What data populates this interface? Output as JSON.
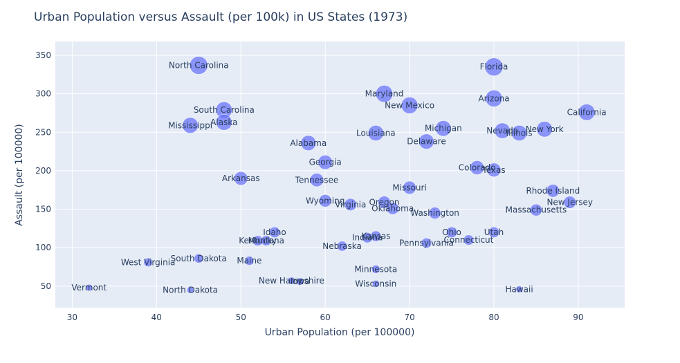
{
  "chart_data": {
    "type": "scatter",
    "title": "Urban Population versus Assault (per 100k) in US States (1973)",
    "xlabel": "Urban Population (per 100000)",
    "ylabel": "Assault (per 100000)",
    "xlim": [
      28,
      95.5
    ],
    "ylim": [
      22,
      368
    ],
    "xticks": [
      30,
      40,
      50,
      60,
      70,
      80,
      90
    ],
    "yticks": [
      50,
      100,
      150,
      200,
      250,
      300,
      350
    ],
    "grid": true,
    "marker_color": "#636efa",
    "plot_bg": "#e5ecf6",
    "size_encodes": "Assault",
    "points": [
      {
        "label": "Alabama",
        "x": 58,
        "y": 236
      },
      {
        "label": "Alaska",
        "x": 48,
        "y": 263
      },
      {
        "label": "Arizona",
        "x": 80,
        "y": 294
      },
      {
        "label": "Arkansas",
        "x": 50,
        "y": 190
      },
      {
        "label": "California",
        "x": 91,
        "y": 276
      },
      {
        "label": "Colorado",
        "x": 78,
        "y": 204
      },
      {
        "label": "Connecticut",
        "x": 77,
        "y": 110
      },
      {
        "label": "Delaware",
        "x": 72,
        "y": 238
      },
      {
        "label": "Florida",
        "x": 80,
        "y": 335
      },
      {
        "label": "Georgia",
        "x": 60,
        "y": 211
      },
      {
        "label": "Hawaii",
        "x": 83,
        "y": 46
      },
      {
        "label": "Idaho",
        "x": 54,
        "y": 120
      },
      {
        "label": "Illinois",
        "x": 83,
        "y": 249
      },
      {
        "label": "Indiana",
        "x": 65,
        "y": 113
      },
      {
        "label": "Iowa",
        "x": 57,
        "y": 56
      },
      {
        "label": "Kansas",
        "x": 66,
        "y": 115
      },
      {
        "label": "Kentucky",
        "x": 52,
        "y": 109
      },
      {
        "label": "Louisiana",
        "x": 66,
        "y": 249
      },
      {
        "label": "Maine",
        "x": 51,
        "y": 83
      },
      {
        "label": "Maryland",
        "x": 67,
        "y": 300
      },
      {
        "label": "Massachusetts",
        "x": 85,
        "y": 149
      },
      {
        "label": "Michigan",
        "x": 74,
        "y": 255
      },
      {
        "label": "Minnesota",
        "x": 66,
        "y": 72
      },
      {
        "label": "Mississippi",
        "x": 44,
        "y": 259
      },
      {
        "label": "Missouri",
        "x": 70,
        "y": 178
      },
      {
        "label": "Montana",
        "x": 53,
        "y": 109
      },
      {
        "label": "Nebraska",
        "x": 62,
        "y": 102
      },
      {
        "label": "Nevada",
        "x": 81,
        "y": 252
      },
      {
        "label": "New Hampshire",
        "x": 56,
        "y": 57
      },
      {
        "label": "New Jersey",
        "x": 89,
        "y": 159
      },
      {
        "label": "New Mexico",
        "x": 70,
        "y": 285
      },
      {
        "label": "New York",
        "x": 86,
        "y": 254
      },
      {
        "label": "North Carolina",
        "x": 45,
        "y": 337
      },
      {
        "label": "North Dakota",
        "x": 44,
        "y": 45
      },
      {
        "label": "Ohio",
        "x": 75,
        "y": 120
      },
      {
        "label": "Oklahoma",
        "x": 68,
        "y": 151
      },
      {
        "label": "Oregon",
        "x": 67,
        "y": 159
      },
      {
        "label": "Pennsylvania",
        "x": 72,
        "y": 106
      },
      {
        "label": "Rhode Island",
        "x": 87,
        "y": 174
      },
      {
        "label": "South Carolina",
        "x": 48,
        "y": 279
      },
      {
        "label": "South Dakota",
        "x": 45,
        "y": 86
      },
      {
        "label": "Tennessee",
        "x": 59,
        "y": 188
      },
      {
        "label": "Texas",
        "x": 80,
        "y": 201
      },
      {
        "label": "Utah",
        "x": 80,
        "y": 120
      },
      {
        "label": "Vermont",
        "x": 32,
        "y": 48
      },
      {
        "label": "Virginia",
        "x": 63,
        "y": 156
      },
      {
        "label": "Washington",
        "x": 73,
        "y": 145
      },
      {
        "label": "West Virginia",
        "x": 39,
        "y": 81
      },
      {
        "label": "Wisconsin",
        "x": 66,
        "y": 53
      },
      {
        "label": "Wyoming",
        "x": 60,
        "y": 161
      }
    ]
  }
}
